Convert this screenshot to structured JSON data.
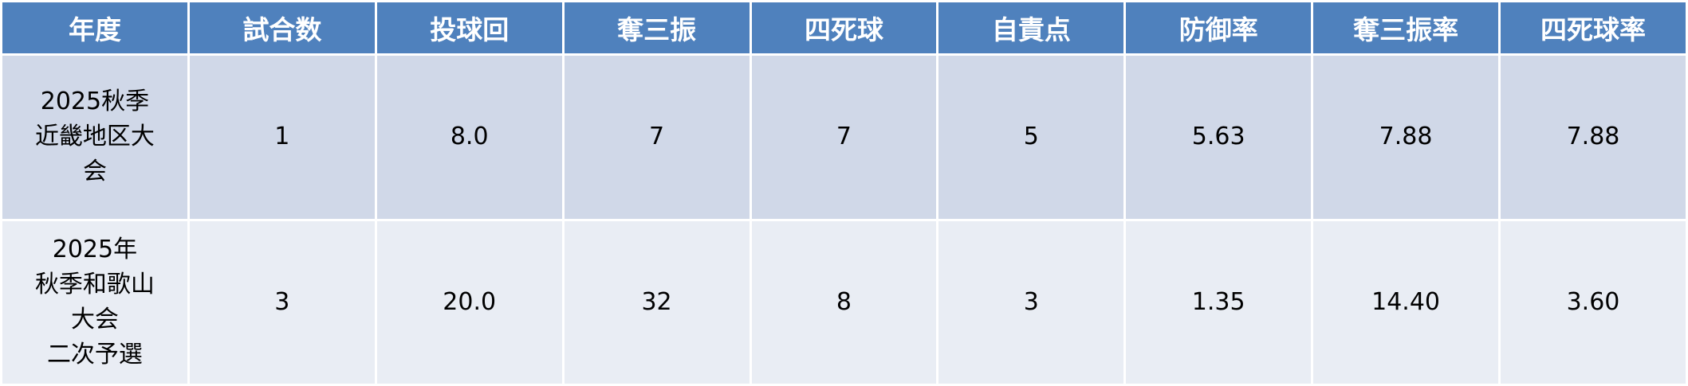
{
  "table": {
    "header": [
      "年度",
      "試合数",
      "投球回",
      "奪三振",
      "四死球",
      "自責点",
      "防御率",
      "奪三振率",
      "四死球率"
    ],
    "rows": [
      [
        [
          "2025秋季",
          "近畿地区大",
          "会"
        ],
        "1",
        "8.0",
        "7",
        "7",
        "5",
        "5.63",
        "7.88",
        "7.88"
      ],
      [
        [
          "2025年",
          "秋季和歌山",
          "大会",
          "二次予選"
        ],
        "3",
        "20.0",
        "32",
        "8",
        "3",
        "1.35",
        "14.40",
        "3.60"
      ]
    ]
  }
}
